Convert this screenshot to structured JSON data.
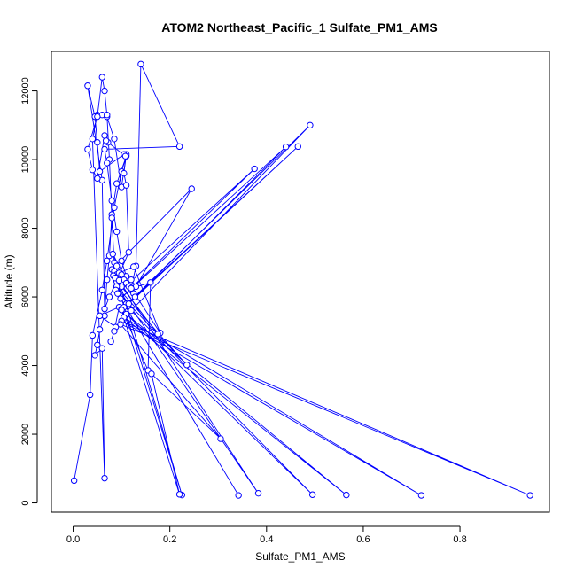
{
  "chart_data": {
    "type": "line",
    "title": "ATOM2 Northeast_Pacific_1 Sulfate_PM1_AMS",
    "xlabel": "Sulfate_PM1_AMS",
    "ylabel": "Altitude (m)",
    "xlim": [
      -0.045,
      0.985
    ],
    "ylim": [
      -270,
      13150
    ],
    "x_ticks": [
      0.0,
      0.2,
      0.4,
      0.6,
      0.8
    ],
    "x_tick_labels": [
      "0.0",
      "0.2",
      "0.4",
      "0.6",
      "0.8"
    ],
    "y_ticks": [
      0,
      2000,
      4000,
      6000,
      8000,
      10000,
      12000
    ],
    "y_tick_labels": [
      "0",
      "2000",
      "4000",
      "6000",
      "8000",
      "10000",
      "12000"
    ],
    "grid": false,
    "legend": "none",
    "color": "#0000ff",
    "marker": "open-circle",
    "series": [
      {
        "x": [
          0.002,
          0.035,
          0.04,
          0.06,
          0.07,
          0.085,
          0.1,
          0.11,
          0.09,
          0.08,
          0.075,
          0.07,
          0.065,
          0.055,
          0.05,
          0.045,
          0.06,
          0.065,
          0.04,
          0.05,
          0.06,
          0.07,
          0.085,
          0.1,
          0.11,
          0.105,
          0.11,
          0.115,
          0.075,
          0.065,
          0.06,
          0.03,
          0.045,
          0.05,
          0.055,
          0.105,
          0.108,
          0.072,
          0.068,
          0.065,
          0.05,
          0.04,
          0.03,
          0.05,
          0.06,
          0.065,
          0.07,
          0.075,
          0.08,
          0.085,
          0.09,
          0.1,
          0.11,
          0.12,
          0.13,
          0.14,
          0.22,
          0.065,
          0.07,
          0.08,
          0.09,
          0.1,
          0.11,
          0.12,
          0.13,
          0.245,
          0.08,
          0.085,
          0.09,
          0.095,
          0.1,
          0.105,
          0.11,
          0.115,
          0.12,
          0.125,
          0.128,
          0.11,
          0.055,
          0.088,
          0.078,
          0.085,
          0.095,
          0.1,
          0.155,
          0.16,
          0.12,
          0.082,
          0.09,
          0.18,
          0.125,
          0.083,
          0.175,
          0.087,
          0.225,
          0.095,
          0.383,
          0.09,
          0.235,
          0.088,
          0.342,
          0.092,
          0.375,
          0.098,
          0.44,
          0.115,
          0.465,
          0.105,
          0.49,
          0.12,
          0.495,
          0.11,
          0.565,
          0.105,
          0.72,
          0.1,
          0.945,
          0.098,
          0.305,
          0.162,
          0.22,
          0.1
        ],
        "y": [
          650,
          3150,
          4880,
          6200,
          7050,
          8600,
          9650,
          10100,
          9300,
          8400,
          7200,
          6500,
          5450,
          5050,
          4600,
          4300,
          4500,
          720,
          10600,
          11300,
          11300,
          11250,
          10600,
          9200,
          10150,
          9600,
          9250,
          7300,
          6000,
          5650,
          9400,
          12150,
          11250,
          10500,
          9650,
          10150,
          10100,
          10500,
          10550,
          10700,
          9450,
          9700,
          10300,
          11250,
          12400,
          12000,
          11300,
          10000,
          8300,
          7000,
          6450,
          6300,
          6450,
          6250,
          6900,
          12780,
          10380,
          10300,
          9900,
          8800,
          7900,
          7050,
          6600,
          6500,
          6300,
          9150,
          6800,
          6750,
          6650,
          6700,
          6650,
          6500,
          6400,
          6300,
          6200,
          6100,
          6000,
          5800,
          5450,
          5120,
          4700,
          5000,
          5700,
          5650,
          3860,
          6420,
          6250,
          7250,
          6900,
          4950,
          6880,
          6620,
          4920,
          6550,
          230,
          6480,
          280,
          6300,
          4020,
          6200,
          220,
          6100,
          9730,
          5950,
          10370,
          5800,
          10380,
          5700,
          11000,
          5600,
          240,
          5500,
          230,
          5400,
          220,
          5300,
          220,
          5200,
          1870,
          3760,
          250,
          5620
        ]
      }
    ]
  }
}
